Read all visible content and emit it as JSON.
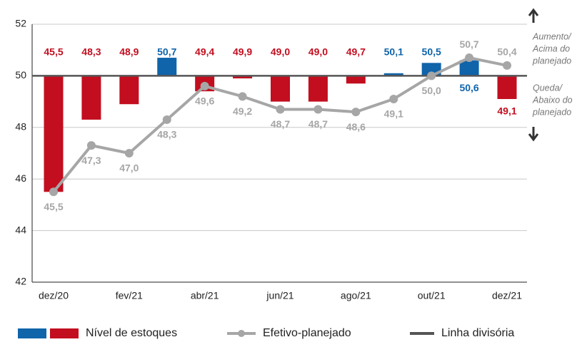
{
  "chart_data": {
    "type": "combo",
    "categories": [
      "dez/20",
      null,
      "fev/21",
      null,
      "abr/21",
      null,
      "jun/21",
      null,
      "ago/21",
      null,
      "out/21",
      null,
      "dez/21"
    ],
    "series": [
      {
        "name": "Nível de estoques",
        "type": "bar",
        "colors": {
          "above": "#0f64aa",
          "below": "#c20e1f"
        },
        "values": [
          45.5,
          48.3,
          48.9,
          50.7,
          49.4,
          49.9,
          49.0,
          49.0,
          49.7,
          50.1,
          50.5,
          50.6,
          49.1
        ],
        "value_labels": [
          "45,5",
          "48,3",
          "48,9",
          "50,7",
          "49,4",
          "49,9",
          "49,0",
          "49,0",
          "49,7",
          "50,1",
          "50,5",
          "50,6",
          "49,1"
        ]
      },
      {
        "name": "Efetivo-planejado",
        "type": "line",
        "color": "#a6a6a6",
        "values": [
          45.5,
          47.3,
          47.0,
          48.3,
          49.6,
          49.2,
          48.7,
          48.7,
          48.6,
          49.1,
          50.0,
          50.7,
          50.4
        ],
        "value_labels": [
          "45,5",
          "47,3",
          "47,0",
          "48,3",
          "49,6",
          "49,2",
          "48,7",
          "48,7",
          "48,6",
          "49,1",
          "50,0",
          "50,7",
          "50,4"
        ]
      }
    ],
    "reference_line": {
      "name": "Linha divisória",
      "value": 50,
      "color": "#555555"
    },
    "ylim": [
      42,
      52
    ],
    "yticks": [
      42,
      44,
      46,
      48,
      50,
      52
    ],
    "grid": true,
    "annotations": {
      "above": [
        "Aumento/",
        "Acima do",
        "planejado"
      ],
      "below": [
        "Queda/",
        "Abaixo do",
        "planejado"
      ]
    }
  }
}
